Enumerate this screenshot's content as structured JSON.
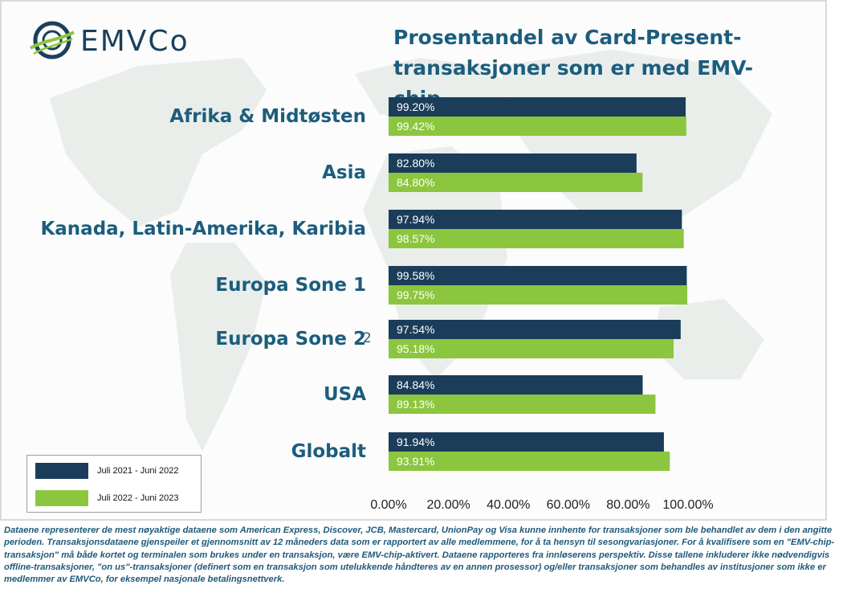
{
  "brand": {
    "logo_text": "EMVCo",
    "colors": {
      "dark_blue": "#1b3f5c",
      "teal": "#1c5d7e",
      "green": "#8cc63f"
    }
  },
  "chart_data": {
    "type": "bar",
    "orientation": "horizontal",
    "title": "Prosentandel av Card-Present-transaksjoner som er med EMV-chip",
    "title_lines": [
      "Prosentandel av Card-Present-",
      "transaksjoner som er med EMV-chip"
    ],
    "categories": [
      "Afrika & Midtøsten",
      "Asia",
      "Kanada, Latin-Amerika, Karibia",
      "Europa Sone 1",
      "Europa Sone 2",
      "USA",
      "Globalt"
    ],
    "series": [
      {
        "name": "Juli 2021 - Juni 2022",
        "color": "#1b3d5a",
        "values": [
          99.2,
          82.8,
          97.94,
          99.58,
          97.54,
          84.84,
          91.94
        ]
      },
      {
        "name": "Juli 2022 - Juni 2023",
        "color": "#8cc63f",
        "values": [
          99.42,
          84.8,
          98.57,
          99.75,
          95.18,
          89.13,
          93.91
        ]
      }
    ],
    "data_labels": [
      [
        "99.20%",
        "82.80%",
        "97.94%",
        "99.58%",
        "97.54%",
        "84.84%",
        "91.94%"
      ],
      [
        "99.42%",
        "84.80%",
        "98.57%",
        "99.75%",
        "95.18%",
        "89.13%",
        "93.91%"
      ]
    ],
    "xlim": [
      0,
      100
    ],
    "x_ticks": [
      "0.00%",
      "20.00%",
      "40.00%",
      "60.00%",
      "80.00%",
      "100.00%"
    ],
    "x_tick_values": [
      0,
      20,
      40,
      60,
      80,
      100
    ],
    "grid": false,
    "legend_position": "bottom-left",
    "annotations": [
      "2"
    ]
  },
  "footnote": "Dataene representerer de mest nøyaktige dataene som American Express, Discover, JCB, Mastercard, UnionPay og Visa kunne innhente for transaksjoner som ble behandlet av dem i den angitte perioden. Transaksjonsdataene gjenspeiler et gjennomsnitt av 12 måneders data som er rapportert av alle medlemmene, for å ta hensyn til sesongvariasjoner. For å kvalifisere som en \"EMV-chip-transaksjon\" må både kortet og terminalen som brukes under en transaksjon, være EMV-chip-aktivert. Dataene rapporteres fra innløserens perspektiv. Disse tallene inkluderer ikke nødvendigvis offline-transaksjoner, \"on us\"-transaksjoner (definert som en transaksjon som utelukkende håndteres av en annen prosessor) og/eller transaksjoner som behandles av institusjoner som ikke er medlemmer av EMVCo, for eksempel nasjonale betalingsnettverk."
}
